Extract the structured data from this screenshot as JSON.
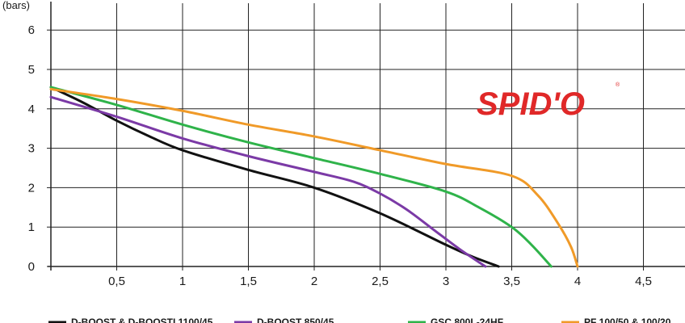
{
  "chart_data": {
    "type": "line",
    "y_unit_label": "(bars)",
    "x_ticks": [
      "0,5",
      "1",
      "1,5",
      "2",
      "2,5",
      "3",
      "3,5",
      "4",
      "4,5"
    ],
    "x_tick_values": [
      0.5,
      1,
      1.5,
      2,
      2.5,
      3,
      3.5,
      4,
      4.5
    ],
    "y_ticks": [
      "0",
      "1",
      "2",
      "3",
      "4",
      "5",
      "6"
    ],
    "y_tick_values": [
      0,
      1,
      2,
      3,
      4,
      5,
      6
    ],
    "xlim": [
      0,
      4.9
    ],
    "ylim": [
      0,
      6.5
    ],
    "grid": true,
    "legend_position": "bottom",
    "series": [
      {
        "name": "D-BOOST & D-BOOSTI 1100/45",
        "color": "#111111",
        "x": [
          0,
          0.25,
          0.5,
          0.75,
          1,
          1.5,
          2,
          2.5,
          3,
          3.2,
          3.4
        ],
        "y": [
          4.55,
          4.15,
          3.7,
          3.3,
          2.95,
          2.45,
          2.0,
          1.35,
          0.55,
          0.25,
          0.0
        ]
      },
      {
        "name": "D-BOOST 850/45",
        "color": "#7b3aa6",
        "x": [
          0,
          0.5,
          1,
          1.5,
          2,
          2.3,
          2.5,
          2.7,
          2.9,
          3.1,
          3.3
        ],
        "y": [
          4.3,
          3.8,
          3.25,
          2.8,
          2.4,
          2.15,
          1.85,
          1.45,
          0.95,
          0.45,
          0.0
        ]
      },
      {
        "name": "GSC 800L-24HF",
        "color": "#2fb34a",
        "x": [
          0,
          0.5,
          1,
          1.5,
          2,
          2.5,
          3,
          3.25,
          3.5,
          3.65,
          3.8
        ],
        "y": [
          4.55,
          4.1,
          3.6,
          3.15,
          2.75,
          2.35,
          1.9,
          1.5,
          1.0,
          0.55,
          0.0
        ]
      },
      {
        "name": "PF 100/50 & 100/20",
        "color": "#f09a28",
        "x": [
          0,
          0.5,
          1,
          1.5,
          2,
          2.5,
          3,
          3.5,
          3.7,
          3.85,
          3.95,
          4.0
        ],
        "y": [
          4.5,
          4.25,
          3.95,
          3.6,
          3.3,
          2.95,
          2.6,
          2.3,
          1.8,
          1.1,
          0.5,
          0.0
        ]
      }
    ]
  },
  "logo": {
    "text": "SPID'O",
    "registered_mark": "®",
    "color": "#e02828"
  }
}
